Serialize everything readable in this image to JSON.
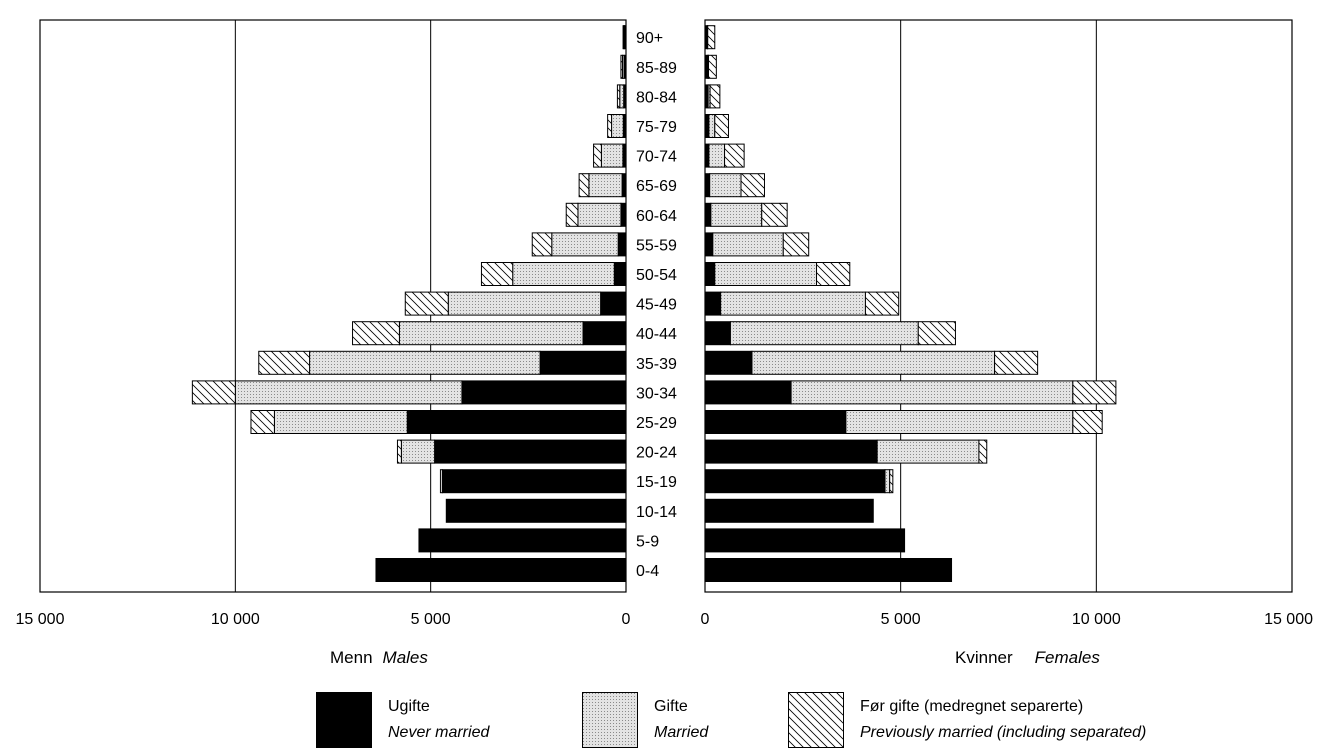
{
  "chart_data": {
    "type": "bar",
    "orientation": "horizontal-population-pyramid",
    "age_groups": [
      "0-4",
      "5-9",
      "10-14",
      "15-19",
      "20-24",
      "25-29",
      "30-34",
      "35-39",
      "40-44",
      "45-49",
      "50-54",
      "55-59",
      "60-64",
      "65-69",
      "70-74",
      "75-79",
      "80-84",
      "85-89",
      "90+"
    ],
    "males": {
      "title_no": "Menn",
      "title_en": "Males",
      "axis_ticks": [
        "15 000",
        "10 000",
        "5 000",
        "0"
      ],
      "xlim": [
        0,
        15000
      ],
      "series": [
        {
          "key": "never",
          "values": [
            6400,
            5300,
            4600,
            4700,
            4900,
            5600,
            4200,
            2200,
            1100,
            650,
            300,
            200,
            130,
            100,
            80,
            70,
            60,
            50,
            40
          ]
        },
        {
          "key": "married",
          "values": [
            0,
            0,
            0,
            50,
            850,
            3400,
            5800,
            5900,
            4700,
            3900,
            2600,
            1700,
            1100,
            850,
            550,
            300,
            100,
            40,
            15
          ]
        },
        {
          "key": "previous",
          "values": [
            0,
            0,
            0,
            0,
            100,
            600,
            1100,
            1300,
            1200,
            1100,
            800,
            500,
            300,
            250,
            200,
            100,
            60,
            40,
            20
          ]
        }
      ]
    },
    "females": {
      "title_no": "Kvinner",
      "title_en": "Females",
      "axis_ticks": [
        "0",
        "5 000",
        "10 000",
        "15 000"
      ],
      "xlim": [
        0,
        15000
      ],
      "series": [
        {
          "key": "never",
          "values": [
            6300,
            5100,
            4300,
            4600,
            4400,
            3600,
            2200,
            1200,
            650,
            400,
            250,
            200,
            150,
            120,
            100,
            100,
            80,
            70,
            60
          ]
        },
        {
          "key": "married",
          "values": [
            0,
            0,
            0,
            120,
            2600,
            5800,
            7200,
            6200,
            4800,
            3700,
            2600,
            1800,
            1300,
            800,
            400,
            150,
            50,
            20,
            10
          ]
        },
        {
          "key": "previous",
          "values": [
            0,
            0,
            0,
            80,
            200,
            750,
            1100,
            1100,
            950,
            850,
            850,
            650,
            650,
            600,
            500,
            350,
            250,
            200,
            180
          ]
        }
      ]
    },
    "legend": [
      {
        "key": "never",
        "label_no": "Ugifte",
        "label_en": "Never married",
        "fill": "#000000"
      },
      {
        "key": "married",
        "label_no": "Gifte",
        "label_en": "Married",
        "fill": "#d9d9d9"
      },
      {
        "key": "previous",
        "label_no": "Før gifte (medregnet separerte)",
        "label_en": "Previously married (including separated)",
        "fill": "hatch"
      }
    ],
    "grid": true
  }
}
